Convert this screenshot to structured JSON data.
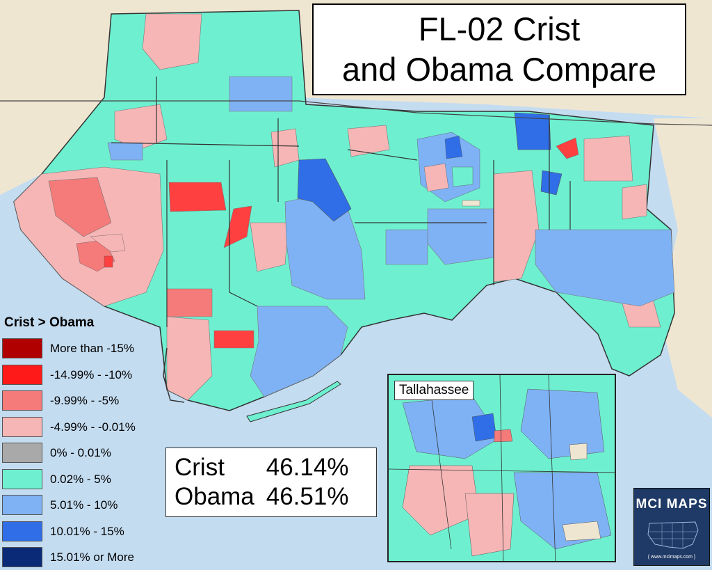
{
  "title": {
    "line1": "FL-02 Crist",
    "line2": "and Obama Compare"
  },
  "legend": {
    "title": "Crist > Obama",
    "items": [
      {
        "label": "More than -15%",
        "color": "#b00000"
      },
      {
        "label": "-14.99% - -10%",
        "color": "#ff1a1a"
      },
      {
        "label": "-9.99% - -5%",
        "color": "#f57a7a"
      },
      {
        "label": "-4.99% - -0.01%",
        "color": "#f7b6b6"
      },
      {
        "label": "0% - 0.01%",
        "color": "#a9a9a9"
      },
      {
        "label": "0.02% - 5%",
        "color": "#6ef0d0"
      },
      {
        "label": "5.01% - 10%",
        "color": "#7fb2f5"
      },
      {
        "label": "10.01% - 15%",
        "color": "#2f6ee6"
      },
      {
        "label": "15.01% or More",
        "color": "#0a2a78"
      }
    ]
  },
  "results": [
    {
      "name": "Crist",
      "value": "46.14%"
    },
    {
      "name": "Obama",
      "value": "46.51%"
    }
  ],
  "inset": {
    "label": "Tallahassee"
  },
  "logo": {
    "text": "MCI MAPS",
    "url": "{ www.mcimaps.com }"
  },
  "colors": {
    "water": "#c4dcf0",
    "land_outside": "#efe6d2",
    "border": "#333333"
  }
}
